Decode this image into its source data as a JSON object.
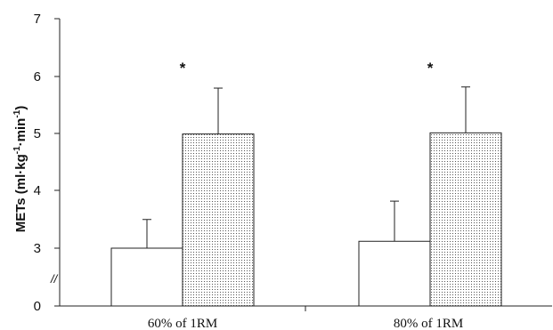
{
  "chart_data": {
    "type": "bar",
    "categories": [
      "60% of 1RM",
      "80% of 1RM"
    ],
    "series": [
      {
        "fill": "white",
        "values": [
          3.0,
          3.12
        ],
        "error": [
          0.5,
          0.7
        ]
      },
      {
        "fill": "dotted",
        "values": [
          4.99,
          5.01
        ],
        "error": [
          0.8,
          0.8
        ]
      }
    ],
    "annotations": [
      "*",
      "*"
    ],
    "ylabel_main": "METs (ml·kg",
    "ylabel_sup1": "-1",
    "ylabel_mid": "·min",
    "ylabel_sup2": "-1",
    "ylabel_end": ")",
    "yticks": [
      "7",
      "6",
      "5",
      "4",
      "3",
      "0"
    ],
    "axis_break": "//",
    "ylim_display": [
      2.1,
      7
    ],
    "y_break_below": 3
  }
}
